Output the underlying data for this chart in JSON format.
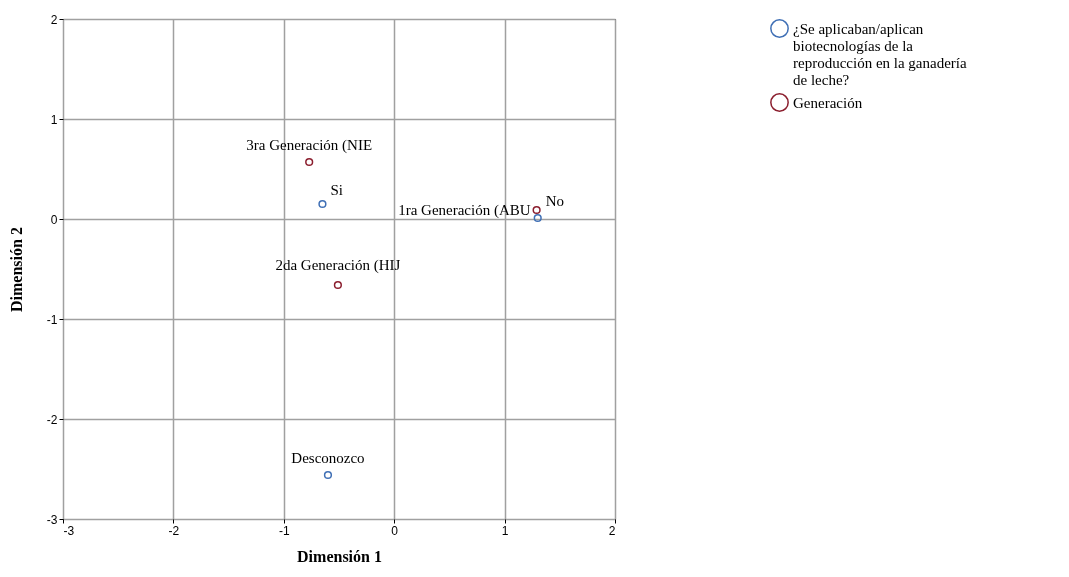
{
  "chart_data": {
    "type": "scatter",
    "xlabel": "Dimensión 1",
    "ylabel": "Dimensión 2",
    "series": [
      {
        "name": "¿Se aplicaban/aplican biotecnologías de la reproducción en la ganadería de leche?",
        "color": "#3f6fb5",
        "x": [
          -0.65,
          1.3,
          -0.6
        ],
        "values": [
          0.15,
          0.01,
          -2.56
        ]
      },
      {
        "name": "Generación",
        "color": "#8b1e2e",
        "x": [
          1.29,
          -0.51,
          -0.77
        ],
        "values": [
          0.09,
          -0.66,
          0.57
        ]
      }
    ],
    "annotations": [
      {
        "text": "Si",
        "x": -0.65,
        "y": 0.15
      },
      {
        "text": "No",
        "x": 1.3,
        "y": 0.01
      },
      {
        "text": "Desconozco",
        "x": -0.6,
        "y": -2.56
      },
      {
        "text": "1ra Generación (ABU",
        "x": 1.29,
        "y": 0.09
      },
      {
        "text": "2da Generación (HIJ",
        "x": -0.51,
        "y": -0.66
      },
      {
        "text": "3ra Generación (NIE",
        "x": -0.77,
        "y": 0.57
      }
    ],
    "xlim": [
      -3,
      2
    ],
    "ylim": [
      -3,
      2
    ],
    "xticks": [
      -3,
      -2,
      -1,
      0,
      1,
      2
    ],
    "yticks": [
      -3,
      -2,
      -1,
      0,
      1,
      2
    ],
    "grid": true,
    "legend": "top right",
    "marker": "circle"
  }
}
